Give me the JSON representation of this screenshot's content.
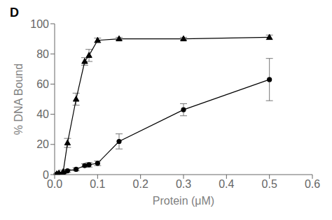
{
  "chart_data": {
    "type": "line",
    "xlabel": "Protein (μM)",
    "ylabel": "% DNA Bound",
    "annotations": [
      "D"
    ],
    "x": [
      0.005,
      0.01,
      0.02,
      0.03,
      0.05,
      0.07,
      0.08,
      0.1,
      0.15,
      0.3,
      0.5
    ],
    "series": [
      {
        "color": "#000000",
        "marker": "triangle",
        "line_style": "solid",
        "values": [
          0.5,
          1.0,
          2.0,
          21.0,
          50.0,
          75.0,
          79.0,
          89.0,
          90.0,
          90.0,
          91.0
        ],
        "errors": [
          0.3,
          0.5,
          1.0,
          3.0,
          4.0,
          2.5,
          4.0,
          1.5,
          1.0,
          1.0,
          1.5
        ]
      },
      {
        "color": "#000000",
        "marker": "circle",
        "line_style": "solid",
        "values": [
          0.2,
          0.5,
          1.0,
          2.5,
          3.5,
          6.0,
          6.5,
          7.5,
          22.0,
          43.0,
          63.0
        ],
        "errors": [
          0.2,
          0.3,
          0.5,
          1.0,
          1.0,
          1.2,
          1.5,
          1.5,
          5.0,
          4.0,
          14.0
        ]
      }
    ],
    "xlim": [
      0,
      0.6
    ],
    "ylim": [
      0,
      100
    ],
    "xticks": [
      {
        "value": 0.0,
        "label": "0.0"
      },
      0.1,
      0.2,
      0.3,
      0.4,
      0.5,
      0.6
    ],
    "yticks": [
      0,
      20,
      40,
      60,
      80,
      100
    ],
    "grid": false
  }
}
